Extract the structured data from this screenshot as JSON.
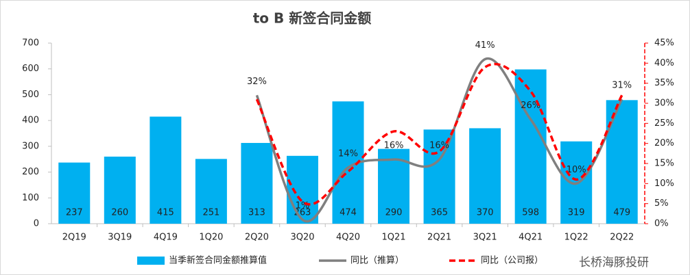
{
  "chart_data": {
    "type": "bar",
    "title": "to B 新签合同金额",
    "categories": [
      "2Q19",
      "3Q19",
      "4Q19",
      "1Q20",
      "2Q20",
      "3Q20",
      "4Q20",
      "1Q21",
      "2Q21",
      "3Q21",
      "4Q21",
      "1Q22",
      "2Q22"
    ],
    "series": [
      {
        "name": "当季新签合同金额推算值",
        "type": "bar",
        "color": "#00b0f0",
        "values": [
          237,
          260,
          415,
          251,
          313,
          263,
          474,
          290,
          365,
          370,
          598,
          319,
          479
        ]
      },
      {
        "name": "同比（推算）",
        "type": "line",
        "axis": "y2",
        "color": "#7f7f7f",
        "dashed": false,
        "values": [
          null,
          null,
          null,
          null,
          32,
          1,
          14,
          16,
          16,
          41,
          26,
          10,
          31
        ],
        "value_labels": [
          null,
          null,
          null,
          null,
          "32%",
          "1%",
          "14%",
          "16%",
          "16%",
          "41%",
          "26%",
          "10%",
          "31%"
        ]
      },
      {
        "name": "同比（公司报）",
        "type": "line",
        "axis": "y2",
        "color": "#ff0000",
        "dashed": true,
        "values": [
          null,
          null,
          null,
          null,
          31,
          5.5,
          13,
          23,
          18,
          39,
          33,
          11,
          32
        ]
      }
    ],
    "ylim": [
      0,
      700
    ],
    "yticks": [
      0,
      100,
      200,
      300,
      400,
      500,
      600,
      700
    ],
    "y2lim": [
      0,
      45
    ],
    "y2ticks": [
      {
        "value": 0,
        "label": "0%"
      },
      {
        "value": 5,
        "label": "5%"
      },
      {
        "value": 10,
        "label": "10%"
      },
      {
        "value": 15,
        "label": "15%"
      },
      {
        "value": 20,
        "label": "20%"
      },
      {
        "value": 25,
        "label": "25%"
      },
      {
        "value": 30,
        "label": "30%"
      },
      {
        "value": 35,
        "label": "35%"
      },
      {
        "value": 40,
        "label": "40%"
      },
      {
        "value": 45,
        "label": "45%"
      }
    ],
    "grid": false,
    "legend": "bottom",
    "annotations": [
      "长桥海豚投研"
    ]
  }
}
